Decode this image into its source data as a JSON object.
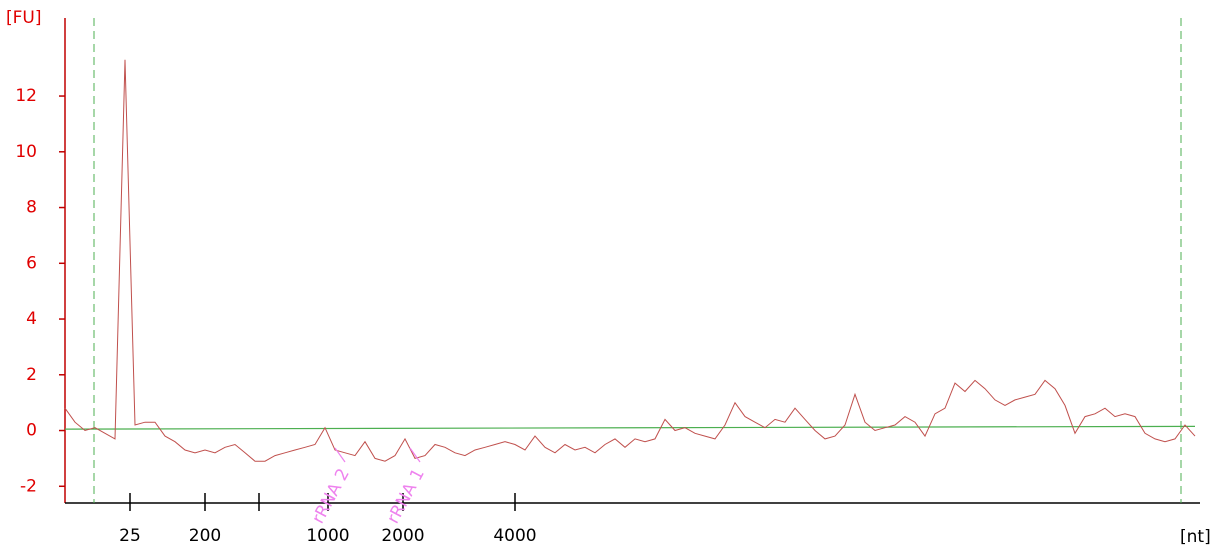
{
  "chart_data": {
    "type": "line",
    "y_label": "[FU]",
    "x_label": "[nt]",
    "ylim": [
      -2.6,
      14.8
    ],
    "yticks": [
      -2,
      0,
      2,
      4,
      6,
      8,
      10,
      12
    ],
    "xlim": [
      0,
      113
    ],
    "xticks": [
      {
        "value": 6.5,
        "label": "25"
      },
      {
        "value": 14,
        "label": "200"
      },
      {
        "value": 19.4,
        "label": null
      },
      {
        "value": 26.3,
        "label": "1000"
      },
      {
        "value": 33.8,
        "label": "2000"
      },
      {
        "value": 45,
        "label": "4000"
      }
    ],
    "series": [
      {
        "color": "#c0504d",
        "values": [
          0.8,
          0.3,
          0.0,
          0.1,
          -0.1,
          -0.3,
          13.3,
          0.2,
          0.3,
          0.3,
          -0.2,
          -0.4,
          -0.7,
          -0.8,
          -0.7,
          -0.8,
          -0.6,
          -0.5,
          -0.8,
          -1.1,
          -1.1,
          -0.9,
          -0.8,
          -0.7,
          -0.6,
          -0.5,
          0.1,
          -0.7,
          -0.8,
          -0.9,
          -0.4,
          -1.0,
          -1.1,
          -0.9,
          -0.3,
          -1.0,
          -0.9,
          -0.5,
          -0.6,
          -0.8,
          -0.9,
          -0.7,
          -0.6,
          -0.5,
          -0.4,
          -0.5,
          -0.7,
          -0.2,
          -0.6,
          -0.8,
          -0.5,
          -0.7,
          -0.6,
          -0.8,
          -0.5,
          -0.3,
          -0.6,
          -0.3,
          -0.4,
          -0.3,
          0.4,
          0.0,
          0.1,
          -0.1,
          -0.2,
          -0.3,
          0.2,
          1.0,
          0.5,
          0.3,
          0.1,
          0.4,
          0.3,
          0.8,
          0.4,
          0.0,
          -0.3,
          -0.2,
          0.2,
          1.3,
          0.3,
          0.0,
          0.1,
          0.2,
          0.5,
          0.3,
          -0.2,
          0.6,
          0.8,
          1.7,
          1.4,
          1.8,
          1.5,
          1.1,
          0.9,
          1.1,
          1.2,
          1.3,
          1.8,
          1.5,
          0.9,
          -0.1,
          0.5,
          0.6,
          0.8,
          0.5,
          0.6,
          0.5,
          -0.1,
          -0.3,
          -0.4,
          -0.3,
          0.2,
          -0.2
        ]
      }
    ],
    "baseline": {
      "color": "#4caf50",
      "values": [
        0.05,
        0.15
      ]
    },
    "markers_x": [
      2.9,
      111.6
    ],
    "annotations": [
      {
        "text": "rRNA 2",
        "x": 28,
        "color": "#ee82ee"
      },
      {
        "text": "rRNA 1",
        "x": 35.5,
        "color": "#ee82ee"
      }
    ]
  }
}
